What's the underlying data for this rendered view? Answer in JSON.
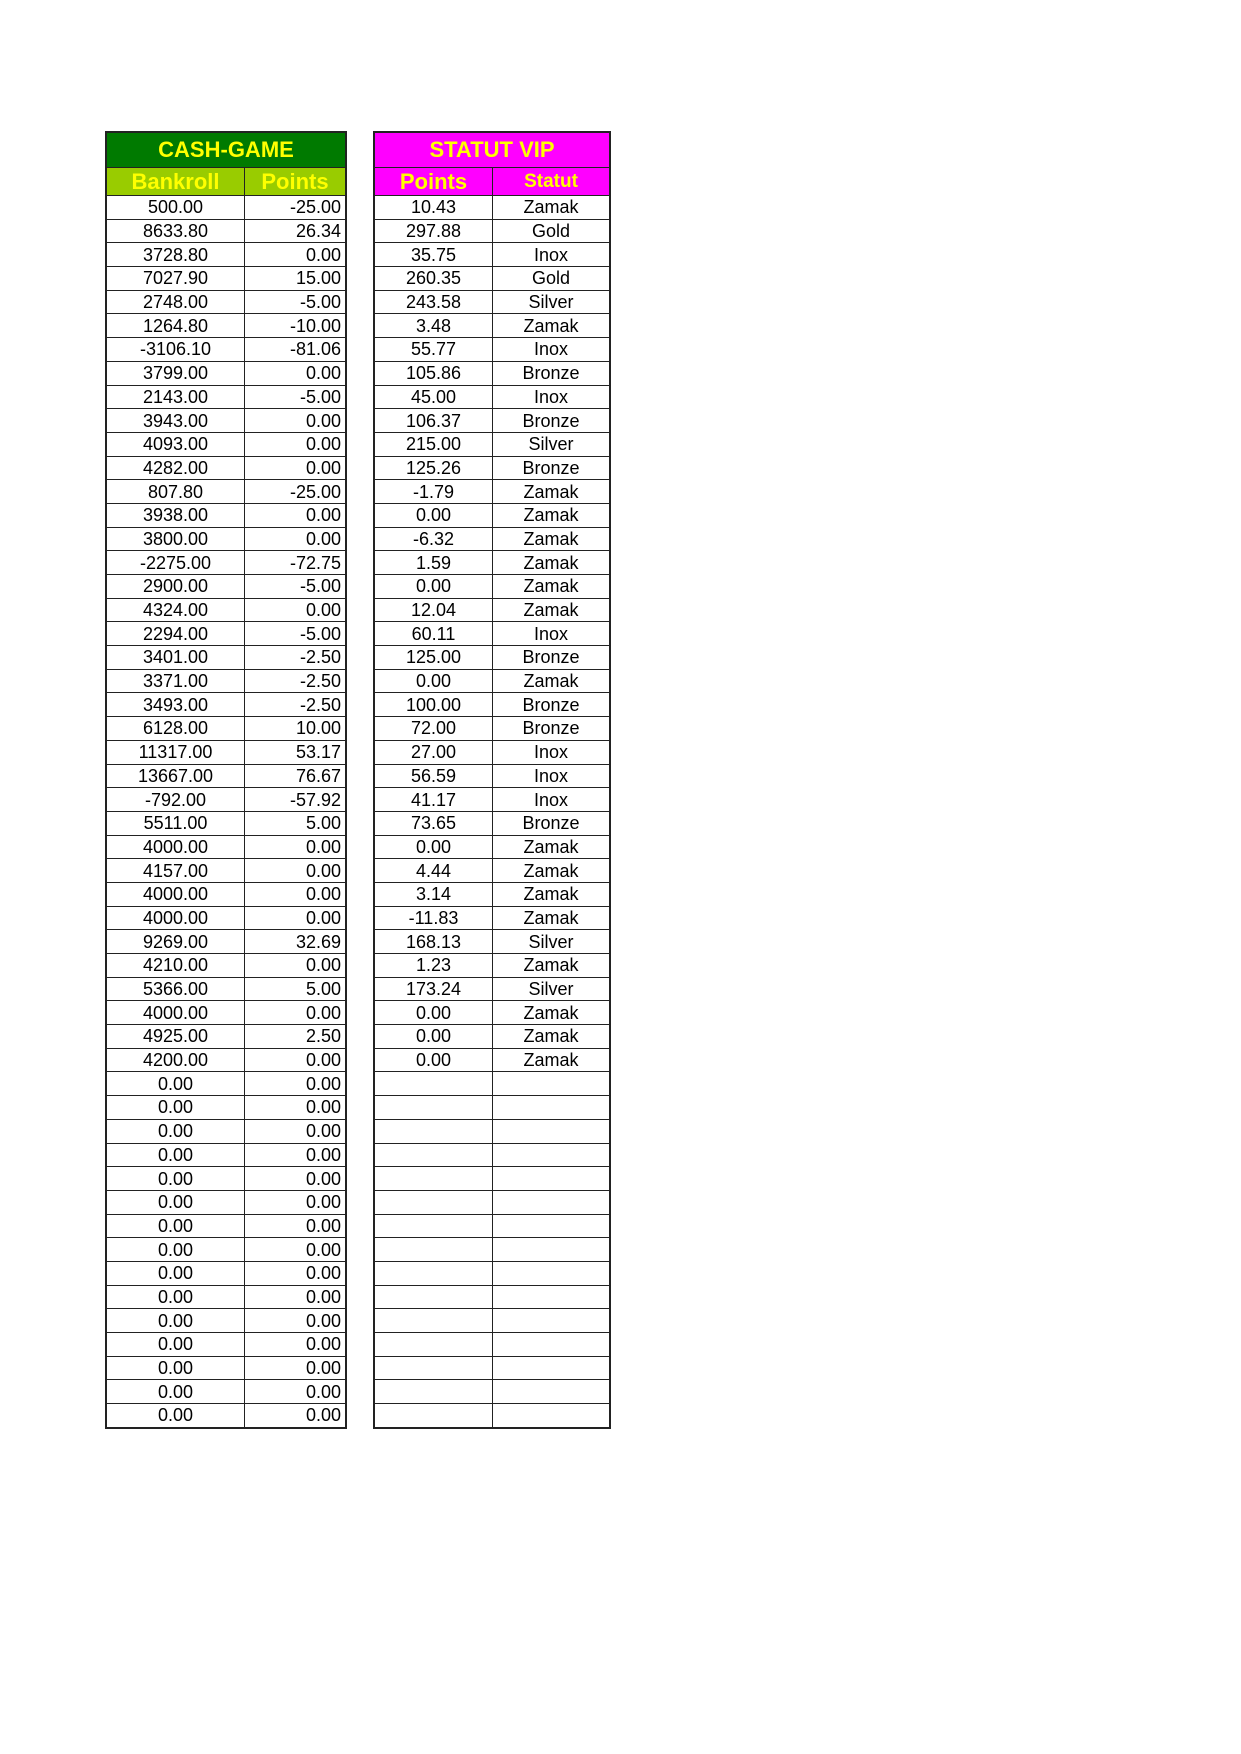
{
  "cash_game": {
    "title": "CASH-GAME",
    "headers": [
      "Bankroll",
      "Points"
    ],
    "colors": {
      "title_bg": "#007a00",
      "header_bg": "#99cc00",
      "text": "#ffff00"
    },
    "rows": [
      [
        "500.00",
        "-25.00"
      ],
      [
        "8633.80",
        "26.34"
      ],
      [
        "3728.80",
        "0.00"
      ],
      [
        "7027.90",
        "15.00"
      ],
      [
        "2748.00",
        "-5.00"
      ],
      [
        "1264.80",
        "-10.00"
      ],
      [
        "-3106.10",
        "-81.06"
      ],
      [
        "3799.00",
        "0.00"
      ],
      [
        "2143.00",
        "-5.00"
      ],
      [
        "3943.00",
        "0.00"
      ],
      [
        "4093.00",
        "0.00"
      ],
      [
        "4282.00",
        "0.00"
      ],
      [
        "807.80",
        "-25.00"
      ],
      [
        "3938.00",
        "0.00"
      ],
      [
        "3800.00",
        "0.00"
      ],
      [
        "-2275.00",
        "-72.75"
      ],
      [
        "2900.00",
        "-5.00"
      ],
      [
        "4324.00",
        "0.00"
      ],
      [
        "2294.00",
        "-5.00"
      ],
      [
        "3401.00",
        "-2.50"
      ],
      [
        "3371.00",
        "-2.50"
      ],
      [
        "3493.00",
        "-2.50"
      ],
      [
        "6128.00",
        "10.00"
      ],
      [
        "11317.00",
        "53.17"
      ],
      [
        "13667.00",
        "76.67"
      ],
      [
        "-792.00",
        "-57.92"
      ],
      [
        "5511.00",
        "5.00"
      ],
      [
        "4000.00",
        "0.00"
      ],
      [
        "4157.00",
        "0.00"
      ],
      [
        "4000.00",
        "0.00"
      ],
      [
        "4000.00",
        "0.00"
      ],
      [
        "9269.00",
        "32.69"
      ],
      [
        "4210.00",
        "0.00"
      ],
      [
        "5366.00",
        "5.00"
      ],
      [
        "4000.00",
        "0.00"
      ],
      [
        "4925.00",
        "2.50"
      ],
      [
        "4200.00",
        "0.00"
      ],
      [
        "0.00",
        "0.00"
      ],
      [
        "0.00",
        "0.00"
      ],
      [
        "0.00",
        "0.00"
      ],
      [
        "0.00",
        "0.00"
      ],
      [
        "0.00",
        "0.00"
      ],
      [
        "0.00",
        "0.00"
      ],
      [
        "0.00",
        "0.00"
      ],
      [
        "0.00",
        "0.00"
      ],
      [
        "0.00",
        "0.00"
      ],
      [
        "0.00",
        "0.00"
      ],
      [
        "0.00",
        "0.00"
      ],
      [
        "0.00",
        "0.00"
      ],
      [
        "0.00",
        "0.00"
      ],
      [
        "0.00",
        "0.00"
      ],
      [
        "0.00",
        "0.00"
      ]
    ]
  },
  "statut_vip": {
    "title": "STATUT VIP",
    "headers": [
      "Points",
      "Statut"
    ],
    "colors": {
      "bg": "#ff00ff",
      "text": "#ffff00"
    },
    "rows": [
      [
        "10.43",
        "Zamak"
      ],
      [
        "297.88",
        "Gold"
      ],
      [
        "35.75",
        "Inox"
      ],
      [
        "260.35",
        "Gold"
      ],
      [
        "243.58",
        "Silver"
      ],
      [
        "3.48",
        "Zamak"
      ],
      [
        "55.77",
        "Inox"
      ],
      [
        "105.86",
        "Bronze"
      ],
      [
        "45.00",
        "Inox"
      ],
      [
        "106.37",
        "Bronze"
      ],
      [
        "215.00",
        "Silver"
      ],
      [
        "125.26",
        "Bronze"
      ],
      [
        "-1.79",
        "Zamak"
      ],
      [
        "0.00",
        "Zamak"
      ],
      [
        "-6.32",
        "Zamak"
      ],
      [
        "1.59",
        "Zamak"
      ],
      [
        "0.00",
        "Zamak"
      ],
      [
        "12.04",
        "Zamak"
      ],
      [
        "60.11",
        "Inox"
      ],
      [
        "125.00",
        "Bronze"
      ],
      [
        "0.00",
        "Zamak"
      ],
      [
        "100.00",
        "Bronze"
      ],
      [
        "72.00",
        "Bronze"
      ],
      [
        "27.00",
        "Inox"
      ],
      [
        "56.59",
        "Inox"
      ],
      [
        "41.17",
        "Inox"
      ],
      [
        "73.65",
        "Bronze"
      ],
      [
        "0.00",
        "Zamak"
      ],
      [
        "4.44",
        "Zamak"
      ],
      [
        "3.14",
        "Zamak"
      ],
      [
        "-11.83",
        "Zamak"
      ],
      [
        "168.13",
        "Silver"
      ],
      [
        "1.23",
        "Zamak"
      ],
      [
        "173.24",
        "Silver"
      ],
      [
        "0.00",
        "Zamak"
      ],
      [
        "0.00",
        "Zamak"
      ],
      [
        "0.00",
        "Zamak"
      ],
      [
        "",
        ""
      ],
      [
        "",
        ""
      ],
      [
        "",
        ""
      ],
      [
        "",
        ""
      ],
      [
        "",
        ""
      ],
      [
        "",
        ""
      ],
      [
        "",
        ""
      ],
      [
        "",
        ""
      ],
      [
        "",
        ""
      ],
      [
        "",
        ""
      ],
      [
        "",
        ""
      ],
      [
        "",
        ""
      ],
      [
        "",
        ""
      ],
      [
        "",
        ""
      ],
      [
        "",
        ""
      ]
    ]
  }
}
